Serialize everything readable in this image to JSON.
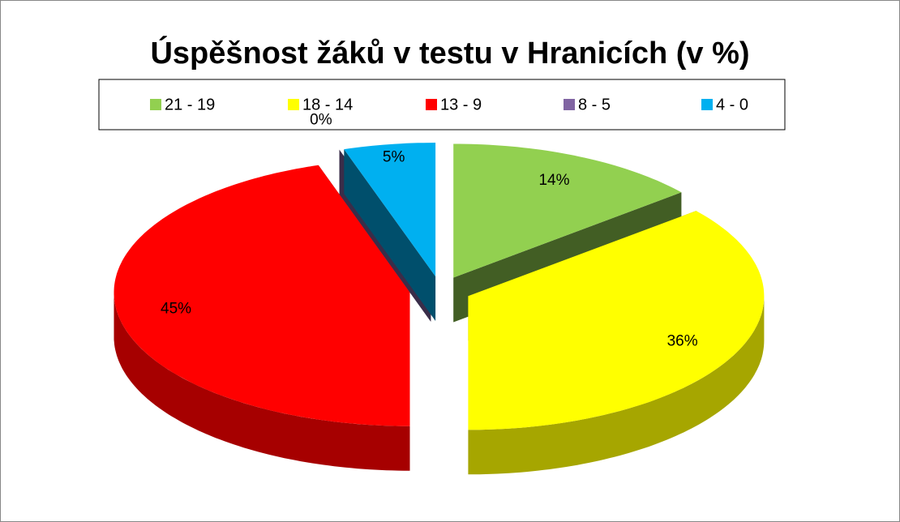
{
  "chart_data": {
    "type": "pie3d",
    "title": "Úspěšnost žáků v testu v Hranicích (v %)",
    "categories": [
      "21  -  19",
      "18  -  14",
      "13  -  9",
      "8  -  5",
      "4  -  0"
    ],
    "values": [
      14,
      36,
      45,
      0,
      5
    ],
    "value_labels": [
      "14%",
      "36%",
      "45%",
      "0%",
      "5%"
    ],
    "colors": [
      "#92d050",
      "#ffff00",
      "#ff0000",
      "#8064a2",
      "#00b0f0"
    ],
    "legend": "top"
  }
}
